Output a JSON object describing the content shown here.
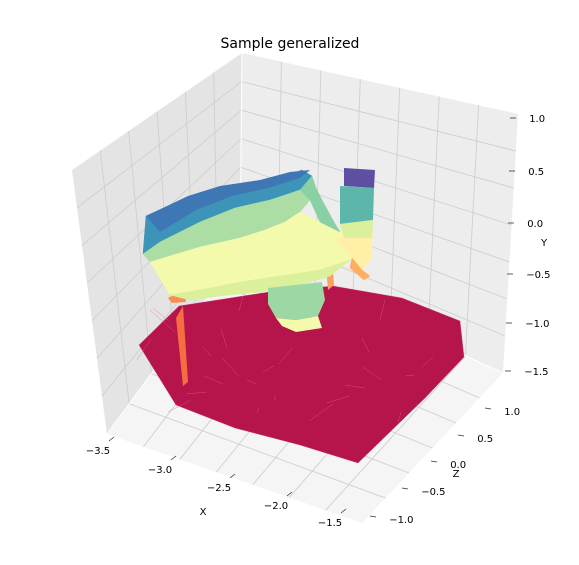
{
  "chart_data": {
    "type": "surface-3d",
    "title": "Sample generalized",
    "xlabel": "X",
    "ylabel": "Y",
    "zlabel": "Z",
    "x_ticks": [
      "−3.5",
      "−3.0",
      "−2.5",
      "−2.0",
      "−1.5"
    ],
    "y_ticks": [
      "1.0",
      "0.5",
      "0.0",
      "−0.5",
      "−1.0",
      "−1.5"
    ],
    "z_ticks": [
      "1.0",
      "0.5",
      "0.0",
      "−0.5",
      "−1.0"
    ],
    "xlim": [
      -3.7,
      -1.3
    ],
    "ylim": [
      -1.5,
      1.0
    ],
    "zlim": [
      -1.2,
      1.2
    ],
    "colormap": "Spectral",
    "grid": true,
    "colors": {
      "floor_surface": "#b5154b",
      "pane": "#ececec",
      "grid": "#cfcfcf"
    }
  }
}
